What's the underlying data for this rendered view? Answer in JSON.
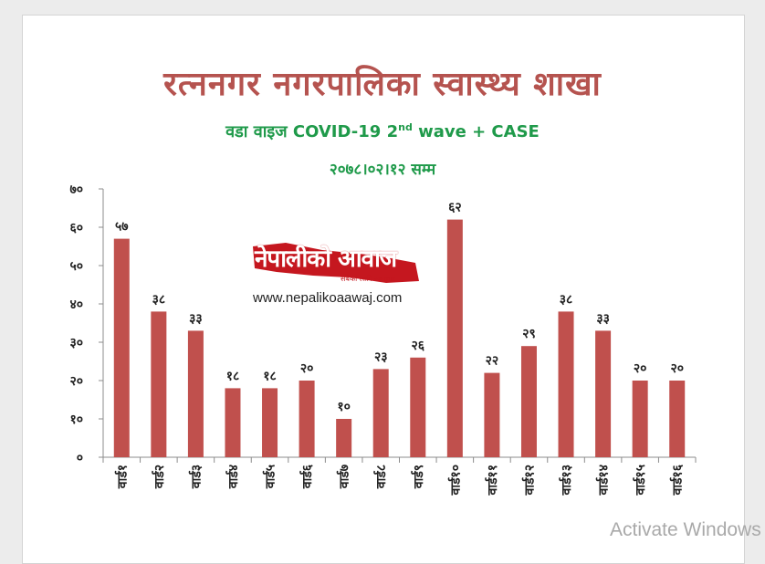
{
  "chart_data": {
    "type": "bar",
    "title": "रत्ननगर नगरपालिका स्वास्थ्य शाखा",
    "subtitle_pre": "वडा वाइज  COVID-19  2",
    "subtitle_sup": "nd",
    "subtitle_post": " wave + CASE",
    "date": "२०७८।०२।१२ सम्म",
    "xlabel": "",
    "ylabel": "",
    "ylim": [
      0,
      70
    ],
    "yticks": [
      0,
      10,
      20,
      30,
      40,
      50,
      60,
      70
    ],
    "ytick_labels": [
      "०",
      "१०",
      "२०",
      "३०",
      "४०",
      "५०",
      "६०",
      "७०"
    ],
    "categories": [
      "वार्ड१",
      "वार्ड२",
      "वार्ड३",
      "वार्ड४",
      "वार्ड५",
      "वार्ड६",
      "वार्ड७",
      "वार्ड८",
      "वार्ड९",
      "वार्ड१०",
      "वार्ड११",
      "वार्ड१२",
      "वार्ड१३",
      "वार्ड१४",
      "वार्ड१५",
      "वार्ड१६"
    ],
    "values": [
      57,
      38,
      33,
      18,
      18,
      20,
      10,
      23,
      26,
      62,
      22,
      29,
      38,
      33,
      20,
      20
    ],
    "value_labels": [
      "५७",
      "३८",
      "३३",
      "१८",
      "१८",
      "२०",
      "१०",
      "२३",
      "२६",
      "६२",
      "२२",
      "२९",
      "३८",
      "३३",
      "२०",
      "२०"
    ],
    "bar_color": "#c0504d",
    "grid": false,
    "legend": "none"
  },
  "logo": {
    "name": "नेपालीको आवाज",
    "tagline": "सबैका लागि समाचार",
    "url": "www.nepalikoaawaj.com",
    "color": "#c5171f"
  },
  "watermark": "Activate Windows"
}
